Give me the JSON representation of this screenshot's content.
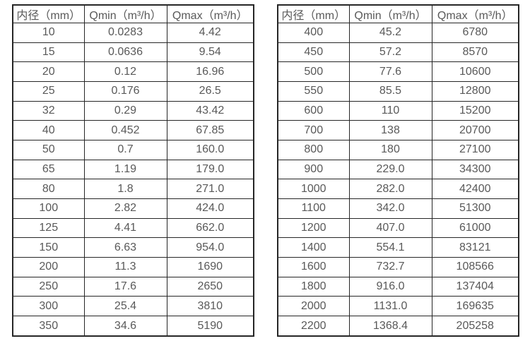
{
  "page": {
    "background": "#ffffff",
    "border_color": "#262626",
    "text_color": "#595959"
  },
  "chart_data": [
    {
      "type": "table",
      "title": "",
      "columns": [
        "内径（mm）",
        "Qmin（m³/h）",
        "Qmax（m³/h）"
      ],
      "rows": [
        [
          "10",
          "0.0283",
          "4.42"
        ],
        [
          "15",
          "0.0636",
          "9.54"
        ],
        [
          "20",
          "0.12",
          "16.96"
        ],
        [
          "25",
          "0.176",
          "26.5"
        ],
        [
          "32",
          "0.29",
          "43.42"
        ],
        [
          "40",
          "0.452",
          "67.85"
        ],
        [
          "50",
          "0.7",
          "160.0"
        ],
        [
          "65",
          "1.19",
          "179.0"
        ],
        [
          "80",
          "1.8",
          "271.0"
        ],
        [
          "100",
          "2.82",
          "424.0"
        ],
        [
          "125",
          "4.41",
          "662.0"
        ],
        [
          "150",
          "6.63",
          "954.0"
        ],
        [
          "200",
          "11.3",
          "1690"
        ],
        [
          "250",
          "17.6",
          "2650"
        ],
        [
          "300",
          "25.4",
          "3810"
        ],
        [
          "350",
          "34.6",
          "5190"
        ]
      ]
    },
    {
      "type": "table",
      "title": "",
      "columns": [
        "内径（mm）",
        "Qmin（m³/h）",
        "Qmax（m³/h）"
      ],
      "rows": [
        [
          "400",
          "45.2",
          "6780"
        ],
        [
          "450",
          "57.2",
          "8570"
        ],
        [
          "500",
          "77.6",
          "10600"
        ],
        [
          "550",
          "85.5",
          "12800"
        ],
        [
          "600",
          "110",
          "15200"
        ],
        [
          "700",
          "138",
          "20700"
        ],
        [
          "800",
          "180",
          "27100"
        ],
        [
          "900",
          "229.0",
          "34300"
        ],
        [
          "1000",
          "282.0",
          "42400"
        ],
        [
          "1100",
          "342.0",
          "51300"
        ],
        [
          "1200",
          "407.0",
          "61000"
        ],
        [
          "1400",
          "554.1",
          "83121"
        ],
        [
          "1600",
          "732.7",
          "108566"
        ],
        [
          "1800",
          "916.0",
          "137404"
        ],
        [
          "2000",
          "1131.0",
          "169635"
        ],
        [
          "2200",
          "1368.4",
          "205258"
        ]
      ]
    }
  ]
}
